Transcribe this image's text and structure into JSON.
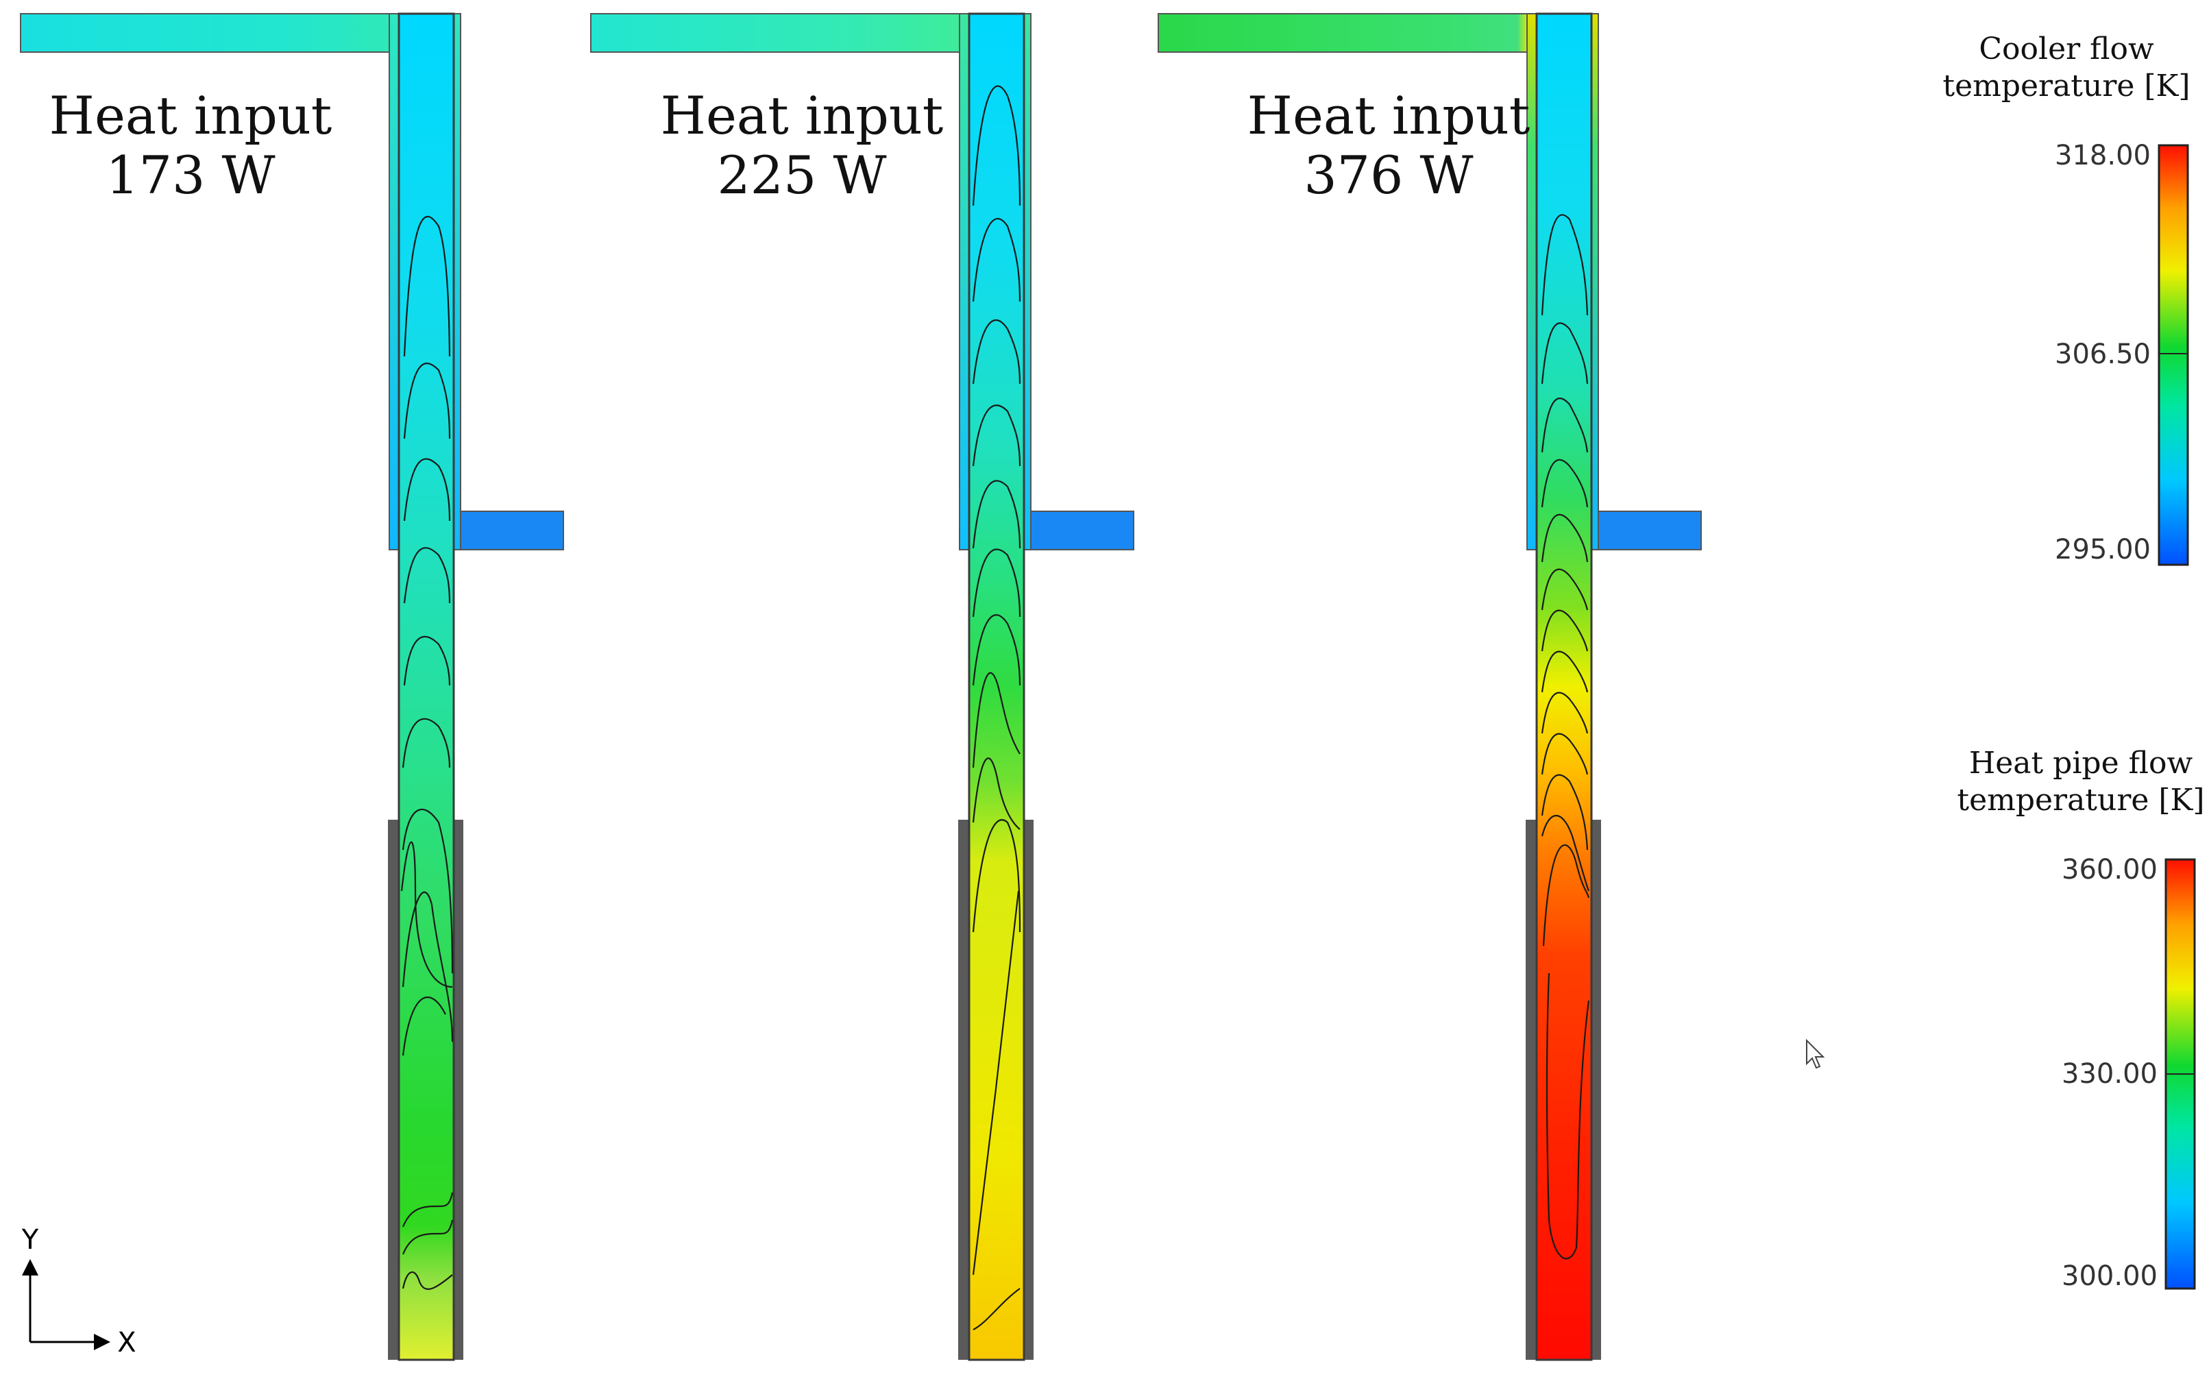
{
  "panels": [
    {
      "title": "Heat input",
      "power": "173 W"
    },
    {
      "title": "Heat input",
      "power": "225 W"
    },
    {
      "title": "Heat input",
      "power": "376 W"
    }
  ],
  "legends": {
    "cooler": {
      "title_line1": "Cooler flow",
      "title_line2": "temperature [K]",
      "max": "318.00",
      "mid": "306.50",
      "min": "295.00"
    },
    "heat_pipe": {
      "title_line1": "Heat pipe flow",
      "title_line2": "temperature [K]",
      "max": "360.00",
      "mid": "330.00",
      "min": "300.00"
    }
  },
  "axes": {
    "y": "Y",
    "x": "X"
  },
  "colors": {
    "colormap": [
      "#0050ff",
      "#00c8ff",
      "#00e6a0",
      "#10d830",
      "#f0f000",
      "#ffa000",
      "#ff1000"
    ],
    "wall": "#5a5a5a",
    "contour": "#1a1a1a"
  }
}
